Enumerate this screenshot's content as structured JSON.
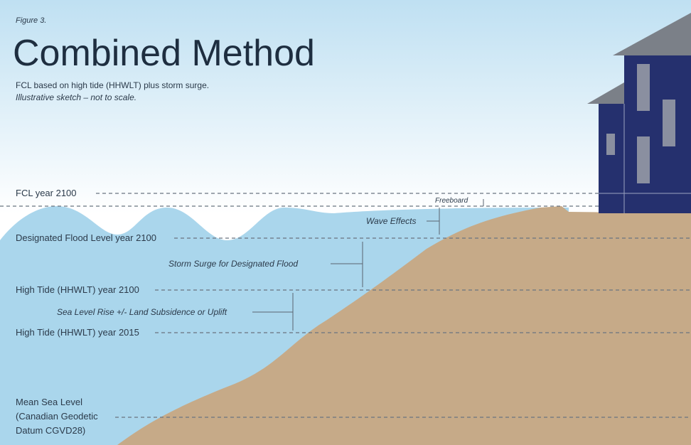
{
  "figure_label": "Figure 3.",
  "title": "Combined Method",
  "subtitle": [
    "FCL based on high tide (HHWLT) plus storm surge.",
    "Illustrative sketch – not to scale."
  ],
  "levels": [
    {
      "label": "FCL year 2100"
    },
    {
      "label": "Designated Flood Level year 2100"
    },
    {
      "label": "High Tide (HHWLT) year 2100"
    },
    {
      "label": "High Tide (HHWLT) year 2015"
    },
    {
      "label": [
        "Mean Sea Level",
        "(Canadian Geodetic",
        "Datum CGVD28)"
      ]
    }
  ],
  "annotations": [
    "Freeboard",
    "Wave Effects",
    "Storm Surge for Designated Flood",
    "Sea Level Rise +/- Land Subsidence or Uplift"
  ]
}
